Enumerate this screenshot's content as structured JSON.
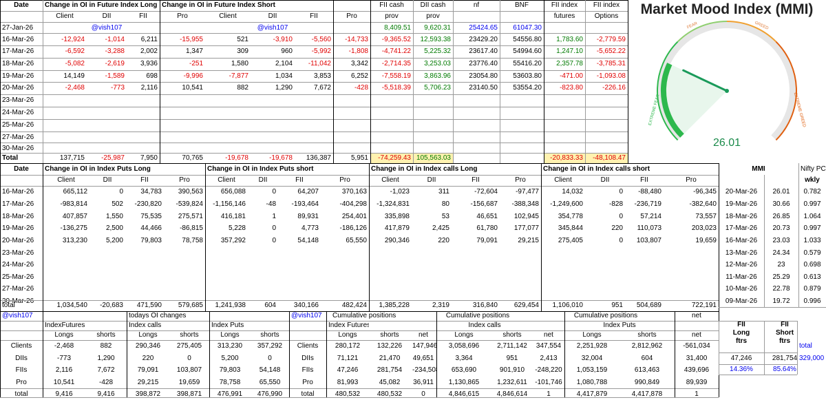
{
  "top_headers": {
    "date": "Date",
    "long_group": "Change in OI in Future Index Long",
    "short_group": "Change in OI in Future Index Short",
    "fii_cash": "FII cash",
    "dii_cash": "DII cash",
    "nf": "nf",
    "bnf": "BNF",
    "fii_index": "FII index",
    "fii_index2": "FII index",
    "sub": [
      "Client",
      "DII",
      "FII",
      "Pro",
      "Client",
      "DII",
      "FII",
      "Pro",
      "prov",
      "prov",
      "",
      "",
      "futures",
      "Options"
    ]
  },
  "top_rows": [
    {
      "date": "27-Jan-26",
      "cells": [
        "",
        "@vish107",
        "",
        "",
        "",
        "@vish107",
        "",
        "",
        "8,409.51",
        "9,620.31",
        "25424.65",
        "61047.30",
        "",
        ""
      ]
    },
    {
      "date": "16-Mar-26",
      "cells": [
        "-12,924",
        "-1,014",
        "6,211",
        "-15,955",
        "521",
        "-3,910",
        "-5,560",
        "-14,733",
        "-9,365.52",
        "12,593.38",
        "23429.20",
        "54556.80",
        "1,783.60",
        "-2,779.59"
      ]
    },
    {
      "date": "17-Mar-26",
      "cells": [
        "-6,592",
        "-3,288",
        "2,002",
        "1,347",
        "309",
        "960",
        "-5,992",
        "-1,808",
        "-4,741.22",
        "5,225.32",
        "23617.40",
        "54994.60",
        "1,247.10",
        "-5,652.22"
      ]
    },
    {
      "date": "18-Mar-26",
      "cells": [
        "-5,082",
        "-2,619",
        "3,936",
        "-251",
        "1,580",
        "2,104",
        "-11,042",
        "3,342",
        "-2,714.35",
        "3,253.03",
        "23776.40",
        "55416.20",
        "2,357.78",
        "-3,785.31"
      ]
    },
    {
      "date": "19-Mar-26",
      "cells": [
        "14,149",
        "-1,589",
        "698",
        "-9,996",
        "-7,877",
        "1,034",
        "3,853",
        "6,252",
        "-7,558.19",
        "3,863.96",
        "23054.80",
        "53603.80",
        "-471.00",
        "-1,093.08"
      ]
    },
    {
      "date": "20-Mar-26",
      "cells": [
        "-2,468",
        "-773",
        "2,116",
        "10,541",
        "882",
        "1,290",
        "7,672",
        "-428",
        "-5,518.39",
        "5,706.23",
        "23140.50",
        "53554.20",
        "-823.80",
        "-226.16"
      ]
    },
    {
      "date": "23-Mar-26",
      "cells": [
        "",
        "",
        "",
        "",
        "",
        "",
        "",
        "",
        "",
        "",
        "",
        "",
        "",
        ""
      ]
    },
    {
      "date": "24-Mar-26",
      "cells": [
        "",
        "",
        "",
        "",
        "",
        "",
        "",
        "",
        "",
        "",
        "",
        "",
        "",
        ""
      ]
    },
    {
      "date": "25-Mar-26",
      "cells": [
        "",
        "",
        "",
        "",
        "",
        "",
        "",
        "",
        "",
        "",
        "",
        "",
        "",
        ""
      ]
    },
    {
      "date": "27-Mar-26",
      "cells": [
        "",
        "",
        "",
        "",
        "",
        "",
        "",
        "",
        "",
        "",
        "",
        "",
        "",
        ""
      ]
    },
    {
      "date": "30-Mar-26",
      "cells": [
        "",
        "",
        "",
        "",
        "",
        "",
        "",
        "",
        "",
        "",
        "",
        "",
        "",
        ""
      ]
    },
    {
      "date": "Total",
      "cells": [
        "137,715",
        "-25,987",
        "7,950",
        "70,765",
        "-19,678",
        "-19,678",
        "136,387",
        "5,951",
        "-74,259.43",
        "105,563.03",
        "",
        "",
        "-20,833.33",
        "-48,108.47"
      ]
    }
  ],
  "mmi": {
    "title": "Market Mood Index (MMI)",
    "value": "26.01",
    "value_num": 26.01,
    "labels": {
      "extreme_fear": "EXTREME FEAR",
      "fear": "FEAR",
      "greed": "GREED",
      "extreme_greed": "EXTREME GREED"
    },
    "colors": {
      "fear": "#2db84d",
      "greed": "#e06010"
    }
  },
  "mid_headers": {
    "date": "Date",
    "puts_long": "Change in OI in Index Puts Long",
    "puts_short": "Change in OI in Index Puts short",
    "calls_long": "Change in OI in Index calls Long",
    "calls_short": "Change in OI in Index calls short",
    "sub": [
      "Client",
      "DII",
      "FII",
      "Pro",
      "Client",
      "DII",
      "FII",
      "Pro",
      "Client",
      "DII",
      "FII",
      "Pro",
      "Client",
      "DII",
      "FII",
      "Pro"
    ]
  },
  "mid_rows": [
    {
      "date": "16-Mar-26",
      "cells": [
        "665,112",
        "0",
        "34,783",
        "390,563",
        "656,088",
        "0",
        "64,207",
        "370,163",
        "-1,023",
        "311",
        "-72,604",
        "-97,477",
        "14,032",
        "0",
        "-88,480",
        "-96,345"
      ]
    },
    {
      "date": "17-Mar-26",
      "cells": [
        "-983,814",
        "502",
        "-230,820",
        "-539,824",
        "-1,156,146",
        "-48",
        "-193,464",
        "-404,298",
        "-1,324,831",
        "80",
        "-156,687",
        "-388,348",
        "-1,249,600",
        "-828",
        "-236,719",
        "-382,640"
      ]
    },
    {
      "date": "18-Mar-26",
      "cells": [
        "407,857",
        "1,550",
        "75,535",
        "275,571",
        "416,181",
        "1",
        "89,931",
        "254,401",
        "335,898",
        "53",
        "46,651",
        "102,945",
        "354,778",
        "0",
        "57,214",
        "73,557"
      ]
    },
    {
      "date": "19-Mar-26",
      "cells": [
        "-136,275",
        "2,500",
        "44,466",
        "-86,815",
        "5,228",
        "0",
        "4,773",
        "-186,126",
        "417,879",
        "2,425",
        "61,780",
        "177,077",
        "345,844",
        "220",
        "110,073",
        "203,023"
      ]
    },
    {
      "date": "20-Mar-26",
      "cells": [
        "313,230",
        "5,200",
        "79,803",
        "78,758",
        "357,292",
        "0",
        "54,148",
        "65,550",
        "290,346",
        "220",
        "79,091",
        "29,215",
        "275,405",
        "0",
        "103,807",
        "19,659"
      ]
    },
    {
      "date": "23-Mar-26",
      "cells": [
        "",
        "",
        "",
        "",
        "",
        "",
        "",
        "",
        "",
        "",
        "",
        "",
        "",
        "",
        "",
        ""
      ]
    },
    {
      "date": "24-Mar-26",
      "cells": [
        "",
        "",
        "",
        "",
        "",
        "",
        "",
        "",
        "",
        "",
        "",
        "",
        "",
        "",
        "",
        ""
      ]
    },
    {
      "date": "25-Mar-26",
      "cells": [
        "",
        "",
        "",
        "",
        "",
        "",
        "",
        "",
        "",
        "",
        "",
        "",
        "",
        "",
        "",
        ""
      ]
    },
    {
      "date": "27-Mar-26",
      "cells": [
        "",
        "",
        "",
        "",
        "",
        "",
        "",
        "",
        "",
        "",
        "",
        "",
        "",
        "",
        "",
        ""
      ]
    },
    {
      "date": "30-Mar-26",
      "cells": [
        "",
        "",
        "",
        "",
        "",
        "",
        "",
        "",
        "",
        "",
        "",
        "",
        "",
        "",
        "",
        ""
      ]
    }
  ],
  "mid_total": {
    "label": "total",
    "cells": [
      "1,034,540",
      "-20,683",
      "471,590",
      "579,685",
      "1,241,938",
      "604",
      "340,166",
      "482,424",
      "1,385,228",
      "2,319",
      "316,840",
      "629,454",
      "1,106,010",
      "951",
      "504,689",
      "722,191"
    ]
  },
  "mmi_table": {
    "h1": "MMI",
    "h2": "Nifty PCR",
    "h3": "wkly",
    "rows": [
      [
        "20-Mar-26",
        "26.01",
        "0.782"
      ],
      [
        "19-Mar-26",
        "30.66",
        "0.997"
      ],
      [
        "18-Mar-26",
        "26.85",
        "1.064"
      ],
      [
        "17-Mar-26",
        "20.73",
        "0.997"
      ],
      [
        "16-Mar-26",
        "23.03",
        "1.033"
      ],
      [
        "13-Mar-26",
        "24.34",
        "0.579"
      ],
      [
        "12-Mar-26",
        "23",
        "0.698"
      ],
      [
        "11-Mar-26",
        "25.29",
        "0.613"
      ],
      [
        "10-Mar-26",
        "22.78",
        "0.879"
      ],
      [
        "09-Mar-26",
        "19.72",
        "0.996"
      ]
    ]
  },
  "bottom": {
    "tag1": "@vish107",
    "todays": "todays OI changes",
    "tag2": "@vish107",
    "cumulative": "Cumulative positions",
    "cumulative2": "Cumulative positions",
    "cumulative3": "Cumulative positions",
    "net": "net",
    "left_groups": [
      "IndexFutures",
      "Index calls",
      "Index Puts"
    ],
    "left_sub": [
      "Longs",
      "shorts",
      "Longs",
      "shorts",
      "Longs",
      "shorts"
    ],
    "left_rows": [
      {
        "label": "Clients",
        "cells": [
          "-2,468",
          "882",
          "290,346",
          "275,405",
          "313,230",
          "357,292"
        ]
      },
      {
        "label": "DIIs",
        "cells": [
          "-773",
          "1,290",
          "220",
          "0",
          "5,200",
          "0"
        ]
      },
      {
        "label": "FIIs",
        "cells": [
          "2,116",
          "7,672",
          "79,091",
          "103,807",
          "79,803",
          "54,148"
        ]
      },
      {
        "label": "Pro",
        "cells": [
          "10,541",
          "-428",
          "29,215",
          "19,659",
          "78,758",
          "65,550"
        ]
      },
      {
        "label": "total",
        "cells": [
          "9,416",
          "9,416",
          "398,872",
          "398,871",
          "476,991",
          "476,990"
        ]
      }
    ],
    "right_groups": [
      "Index Futures",
      "Index calls",
      "Index Puts"
    ],
    "right_sub": [
      "Longs",
      "shorts",
      "net",
      "Longs",
      "shorts",
      "net",
      "Longs",
      "shorts",
      "net"
    ],
    "right_rows": [
      {
        "label": "Clients",
        "cells": [
          "280,172",
          "132,226",
          "147,946",
          "3,058,696",
          "2,711,142",
          "347,554",
          "2,251,928",
          "2,812,962",
          "-561,034"
        ]
      },
      {
        "label": "DIIs",
        "cells": [
          "71,121",
          "21,470",
          "49,651",
          "3,364",
          "951",
          "2,413",
          "32,004",
          "604",
          "31,400"
        ]
      },
      {
        "label": "FIIs",
        "cells": [
          "47,246",
          "281,754",
          "-234,508",
          "653,690",
          "901,910",
          "-248,220",
          "1,053,159",
          "613,463",
          "439,696"
        ]
      },
      {
        "label": "Pro",
        "cells": [
          "81,993",
          "45,082",
          "36,911",
          "1,130,865",
          "1,232,611",
          "-101,746",
          "1,080,788",
          "990,849",
          "89,939"
        ]
      },
      {
        "label": "total",
        "cells": [
          "480,532",
          "480,532",
          "0",
          "4,846,615",
          "4,846,614",
          "1",
          "4,417,879",
          "4,417,878",
          "1"
        ]
      }
    ],
    "fii_box": {
      "h1a": "FII",
      "h1b": "Long",
      "h1c": "ftrs",
      "h2a": "FII",
      "h2b": "Short",
      "h2c": "ftrs",
      "total_label": "total",
      "long": "47,246",
      "short": "281,754",
      "total": "329,000",
      "long_pct": "14.36%",
      "short_pct": "85.64%"
    }
  }
}
